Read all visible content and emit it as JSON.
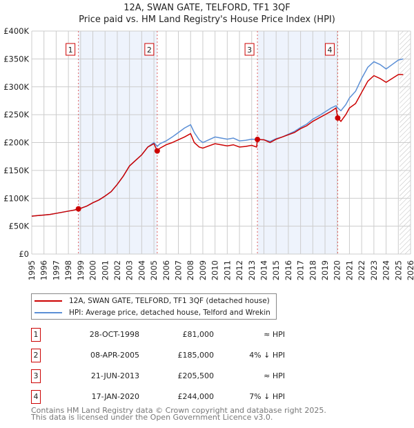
{
  "title": "12A, SWAN GATE, TELFORD, TF1 3QF",
  "subtitle": "Price paid vs. HM Land Registry's House Price Index (HPI)",
  "chart_data": {
    "type": "line",
    "xlim": [
      1995,
      2026
    ],
    "ylim": [
      0,
      400000
    ],
    "y_ticks": [
      {
        "v": 0,
        "label": "£0"
      },
      {
        "v": 50000,
        "label": "£50K"
      },
      {
        "v": 100000,
        "label": "£100K"
      },
      {
        "v": 150000,
        "label": "£150K"
      },
      {
        "v": 200000,
        "label": "£200K"
      },
      {
        "v": 250000,
        "label": "£250K"
      },
      {
        "v": 300000,
        "label": "£300K"
      },
      {
        "v": 350000,
        "label": "£350K"
      },
      {
        "v": 400000,
        "label": "£400K"
      }
    ],
    "x_ticks": [
      "1995",
      "1996",
      "1997",
      "1998",
      "1999",
      "2000",
      "2001",
      "2002",
      "2003",
      "2004",
      "2005",
      "2006",
      "2007",
      "2008",
      "2009",
      "2010",
      "2011",
      "2012",
      "2013",
      "2014",
      "2015",
      "2016",
      "2017",
      "2018",
      "2019",
      "2020",
      "2021",
      "2022",
      "2023",
      "2024",
      "2025",
      "2026"
    ],
    "shaded_ranges": [
      [
        1998.82,
        2005.27
      ],
      [
        2013.47,
        2020.04
      ]
    ],
    "hatched_from": 2025.1,
    "series": [
      {
        "name": "12A, SWAN GATE, TELFORD, TF1 3QF (detached house)",
        "color": "#cc0000",
        "x": [
          1995,
          1995.5,
          1996,
          1996.5,
          1997,
          1997.5,
          1998,
          1998.5,
          1998.82,
          1999,
          1999.5,
          2000,
          2000.5,
          2001,
          2001.5,
          2002,
          2002.5,
          2003,
          2003.5,
          2004,
          2004.5,
          2005,
          2005.27,
          2005.5,
          2006,
          2006.5,
          2007,
          2007.5,
          2008,
          2008.3,
          2008.7,
          2009,
          2009.5,
          2010,
          2010.5,
          2011,
          2011.5,
          2012,
          2012.5,
          2013,
          2013.4,
          2013.47,
          2014,
          2014.5,
          2015,
          2015.5,
          2016,
          2016.5,
          2017,
          2017.5,
          2018,
          2018.5,
          2019,
          2019.5,
          2019.9,
          2020.04,
          2020.3,
          2020.7,
          2021,
          2021.5,
          2022,
          2022.5,
          2023,
          2023.5,
          2024,
          2024.5,
          2025,
          2025.4
        ],
        "y": [
          68000,
          69000,
          70000,
          71000,
          73000,
          75000,
          77000,
          79000,
          81000,
          82000,
          86000,
          92000,
          97000,
          104000,
          112000,
          125000,
          140000,
          158000,
          168000,
          178000,
          192000,
          198000,
          185000,
          190000,
          196000,
          200000,
          205000,
          210000,
          216000,
          200000,
          192000,
          190000,
          194000,
          198000,
          196000,
          194000,
          196000,
          192000,
          193000,
          195000,
          192000,
          205500,
          205000,
          200000,
          206000,
          210000,
          214000,
          218000,
          225000,
          230000,
          238000,
          244000,
          250000,
          256000,
          262000,
          244000,
          238000,
          250000,
          262000,
          270000,
          290000,
          310000,
          320000,
          315000,
          308000,
          315000,
          322000,
          322000
        ]
      },
      {
        "name": "HPI: Average price, detached house, Telford and Wrekin",
        "color": "#5b8fd6",
        "x": [
          1995,
          1995.5,
          1996,
          1996.5,
          1997,
          1997.5,
          1998,
          1998.5,
          1998.82,
          1999,
          1999.5,
          2000,
          2000.5,
          2001,
          2001.5,
          2002,
          2002.5,
          2003,
          2003.5,
          2004,
          2004.5,
          2005,
          2005.27,
          2005.5,
          2006,
          2006.5,
          2007,
          2007.5,
          2008,
          2008.3,
          2008.7,
          2009,
          2009.5,
          2010,
          2010.5,
          2011,
          2011.5,
          2012,
          2012.5,
          2013,
          2013.47,
          2014,
          2014.5,
          2015,
          2015.5,
          2016,
          2016.5,
          2017,
          2017.5,
          2018,
          2018.5,
          2019,
          2019.5,
          2019.9,
          2020.04,
          2020.3,
          2020.7,
          2021,
          2021.5,
          2022,
          2022.5,
          2023,
          2023.5,
          2024,
          2024.5,
          2025,
          2025.4
        ],
        "y": [
          68000,
          69000,
          70000,
          71000,
          73000,
          75000,
          77000,
          79000,
          81000,
          82000,
          86000,
          92000,
          97000,
          104000,
          112000,
          125000,
          140000,
          158000,
          168000,
          178000,
          192000,
          200000,
          193000,
          198000,
          203000,
          210000,
          218000,
          226000,
          232000,
          218000,
          205000,
          200000,
          205000,
          210000,
          208000,
          206000,
          208000,
          203000,
          204000,
          206000,
          205500,
          205000,
          202000,
          207000,
          210000,
          215000,
          220000,
          227000,
          233000,
          242000,
          248000,
          255000,
          262000,
          266000,
          262000,
          257000,
          268000,
          280000,
          292000,
          315000,
          335000,
          345000,
          340000,
          332000,
          340000,
          348000,
          350000
        ]
      }
    ],
    "markers": [
      {
        "label": "1",
        "x": 1998.82,
        "y": 81000
      },
      {
        "label": "2",
        "x": 2005.27,
        "y": 185000
      },
      {
        "label": "3",
        "x": 2013.47,
        "y": 205500
      },
      {
        "label": "4",
        "x": 2020.04,
        "y": 244000
      }
    ]
  },
  "legend": {
    "red": "12A, SWAN GATE, TELFORD, TF1 3QF (detached house)",
    "blue": "HPI: Average price, detached house, Telford and Wrekin"
  },
  "transactions": [
    {
      "num": "1",
      "date": "28-OCT-1998",
      "price": "£81,000",
      "hpi": "≈ HPI"
    },
    {
      "num": "2",
      "date": "08-APR-2005",
      "price": "£185,000",
      "hpi": "4% ↓ HPI"
    },
    {
      "num": "3",
      "date": "21-JUN-2013",
      "price": "£205,500",
      "hpi": "≈ HPI"
    },
    {
      "num": "4",
      "date": "17-JAN-2020",
      "price": "£244,000",
      "hpi": "7% ↓ HPI"
    }
  ],
  "footer": {
    "line1": "Contains HM Land Registry data © Crown copyright and database right 2025.",
    "line2": "This data is licensed under the Open Government Licence v3.0."
  }
}
